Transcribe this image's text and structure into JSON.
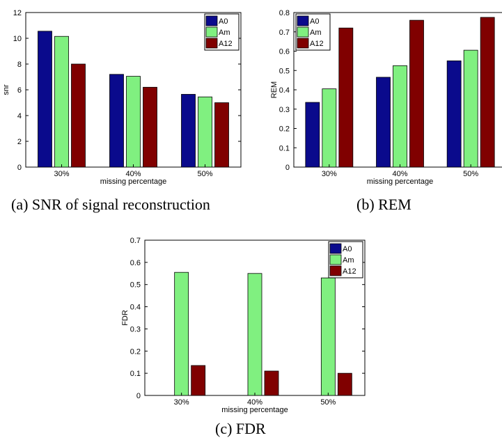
{
  "panels": [
    {
      "caption": "(a) SNR of signal reconstruction",
      "chart_data": {
        "type": "bar",
        "categories": [
          "30%",
          "40%",
          "50%"
        ],
        "xlabel": "missing percentage",
        "ylabel": "snr",
        "ylim": [
          0,
          12
        ],
        "yticks": [
          "0",
          "2",
          "4",
          "6",
          "8",
          "10",
          "12"
        ],
        "legend_position": "top-right",
        "series": [
          {
            "name": "A0",
            "color": "#0a0a8c",
            "values": [
              10.55,
              7.2,
              5.65
            ]
          },
          {
            "name": "Am",
            "color": "#80f080",
            "values": [
              10.15,
              7.05,
              5.45
            ]
          },
          {
            "name": "A12",
            "color": "#800000",
            "values": [
              8.0,
              6.2,
              5.0
            ]
          }
        ]
      }
    },
    {
      "caption": "(b) REM",
      "chart_data": {
        "type": "bar",
        "categories": [
          "30%",
          "40%",
          "50%"
        ],
        "xlabel": "missing percentage",
        "ylabel": "REM",
        "ylim": [
          0,
          0.8
        ],
        "yticks": [
          "0",
          "0.1",
          "0.2",
          "0.3",
          "0.4",
          "0.5",
          "0.6",
          "0.7",
          "0.8"
        ],
        "legend_position": "top-left",
        "series": [
          {
            "name": "A0",
            "color": "#0a0a8c",
            "values": [
              0.335,
              0.465,
              0.55
            ]
          },
          {
            "name": "Am",
            "color": "#80f080",
            "values": [
              0.405,
              0.525,
              0.605
            ]
          },
          {
            "name": "A12",
            "color": "#800000",
            "values": [
              0.72,
              0.76,
              0.775
            ]
          }
        ]
      }
    },
    {
      "caption": "(c) FDR",
      "chart_data": {
        "type": "bar",
        "categories": [
          "30%",
          "40%",
          "50%"
        ],
        "xlabel": "missing percentage",
        "ylabel": "FDR",
        "ylim": [
          0,
          0.7
        ],
        "yticks": [
          "0",
          "0.1",
          "0.2",
          "0.3",
          "0.4",
          "0.5",
          "0.6",
          "0.7"
        ],
        "legend_position": "top-right",
        "series": [
          {
            "name": "A0",
            "color": "#0a0a8c",
            "values": [
              0,
              0,
              0
            ]
          },
          {
            "name": "Am",
            "color": "#80f080",
            "values": [
              0.555,
              0.55,
              0.53
            ]
          },
          {
            "name": "A12",
            "color": "#800000",
            "values": [
              0.135,
              0.11,
              0.1
            ]
          }
        ]
      }
    }
  ]
}
